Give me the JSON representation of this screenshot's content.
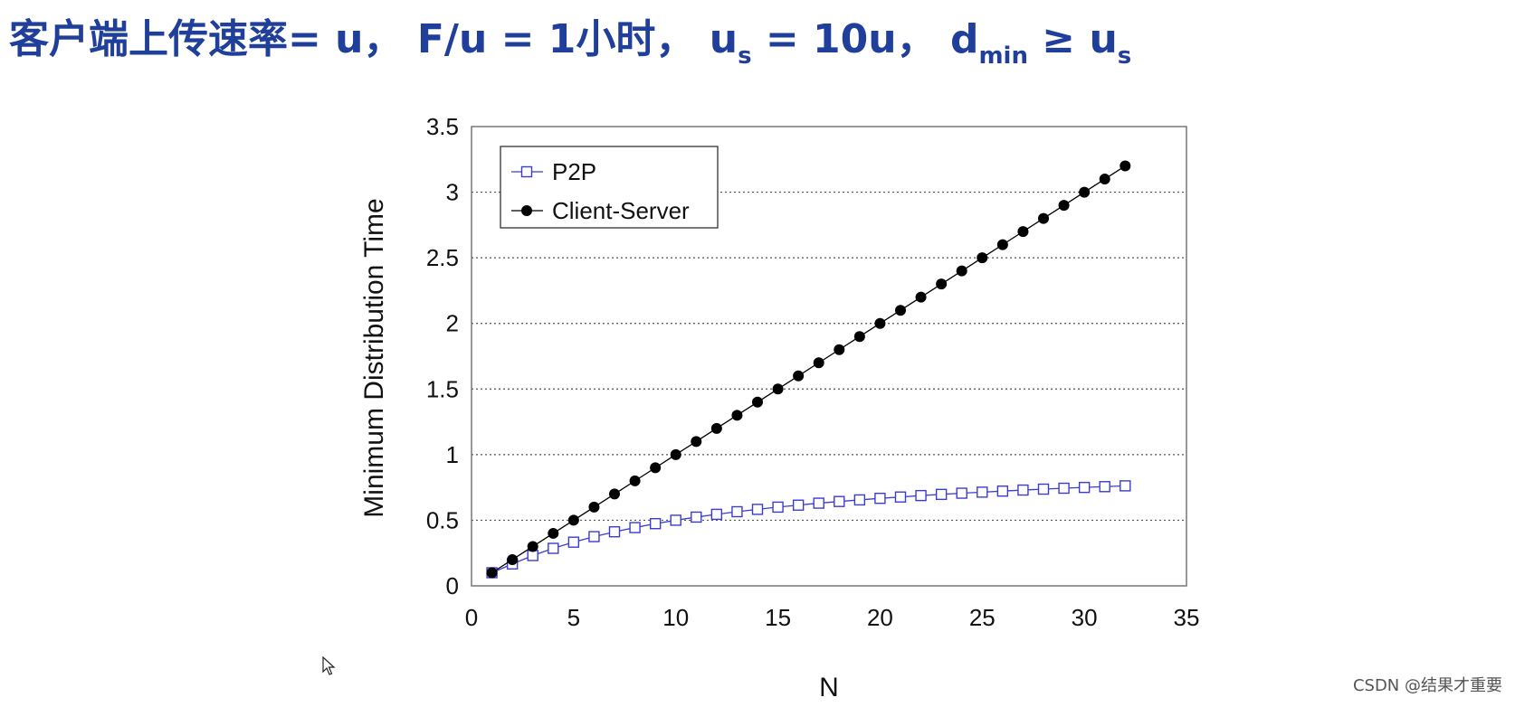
{
  "headline": {
    "prefix": "客户端上传速率= u， F/u = 1小时，",
    "us_base": "u",
    "us_sub": "s",
    "us_eq": " = 10u，",
    "dmin_base": "d",
    "dmin_sub": "min",
    "ge": " ≥ ",
    "us2_base": "u",
    "us2_sub": "s"
  },
  "watermark": "CSDN @结果才重要",
  "chart_data": {
    "type": "line",
    "xlabel": "N",
    "ylabel": "Minimum Distribution Time",
    "xlim": [
      0,
      35
    ],
    "ylim": [
      0,
      3.5
    ],
    "xticks": [
      0,
      5,
      10,
      15,
      20,
      25,
      30,
      35
    ],
    "xtick_labels": [
      "0",
      "5",
      "10",
      "15",
      "20",
      "25",
      "30",
      "35"
    ],
    "yticks": [
      0,
      0.5,
      1,
      1.5,
      2,
      2.5,
      3,
      3.5
    ],
    "ytick_labels": [
      "0",
      "0.5",
      "1",
      "1.5",
      "2",
      "2.5",
      "3",
      "3.5"
    ],
    "grid": "horizontal-dotted",
    "legend_position": "top-left",
    "x": [
      1,
      2,
      3,
      4,
      5,
      6,
      7,
      8,
      9,
      10,
      11,
      12,
      13,
      14,
      15,
      16,
      17,
      18,
      19,
      20,
      21,
      22,
      23,
      24,
      25,
      26,
      27,
      28,
      29,
      30,
      31,
      32
    ],
    "series": [
      {
        "name": "P2P",
        "marker": "open-square",
        "color": "#3b3bd6",
        "values": [
          0.1,
          0.167,
          0.231,
          0.286,
          0.333,
          0.375,
          0.412,
          0.444,
          0.474,
          0.5,
          0.524,
          0.545,
          0.565,
          0.583,
          0.6,
          0.615,
          0.63,
          0.643,
          0.655,
          0.667,
          0.677,
          0.688,
          0.697,
          0.706,
          0.714,
          0.722,
          0.73,
          0.737,
          0.744,
          0.75,
          0.756,
          0.762
        ]
      },
      {
        "name": "Client-Server",
        "marker": "filled-circle",
        "color": "#000000",
        "values": [
          0.1,
          0.2,
          0.3,
          0.4,
          0.5,
          0.6,
          0.7,
          0.8,
          0.9,
          1.0,
          1.1,
          1.2,
          1.3,
          1.4,
          1.5,
          1.6,
          1.7,
          1.8,
          1.9,
          2.0,
          2.1,
          2.2,
          2.3,
          2.4,
          2.5,
          2.6,
          2.7,
          2.8,
          2.9,
          3.0,
          3.1,
          3.2
        ]
      }
    ]
  }
}
